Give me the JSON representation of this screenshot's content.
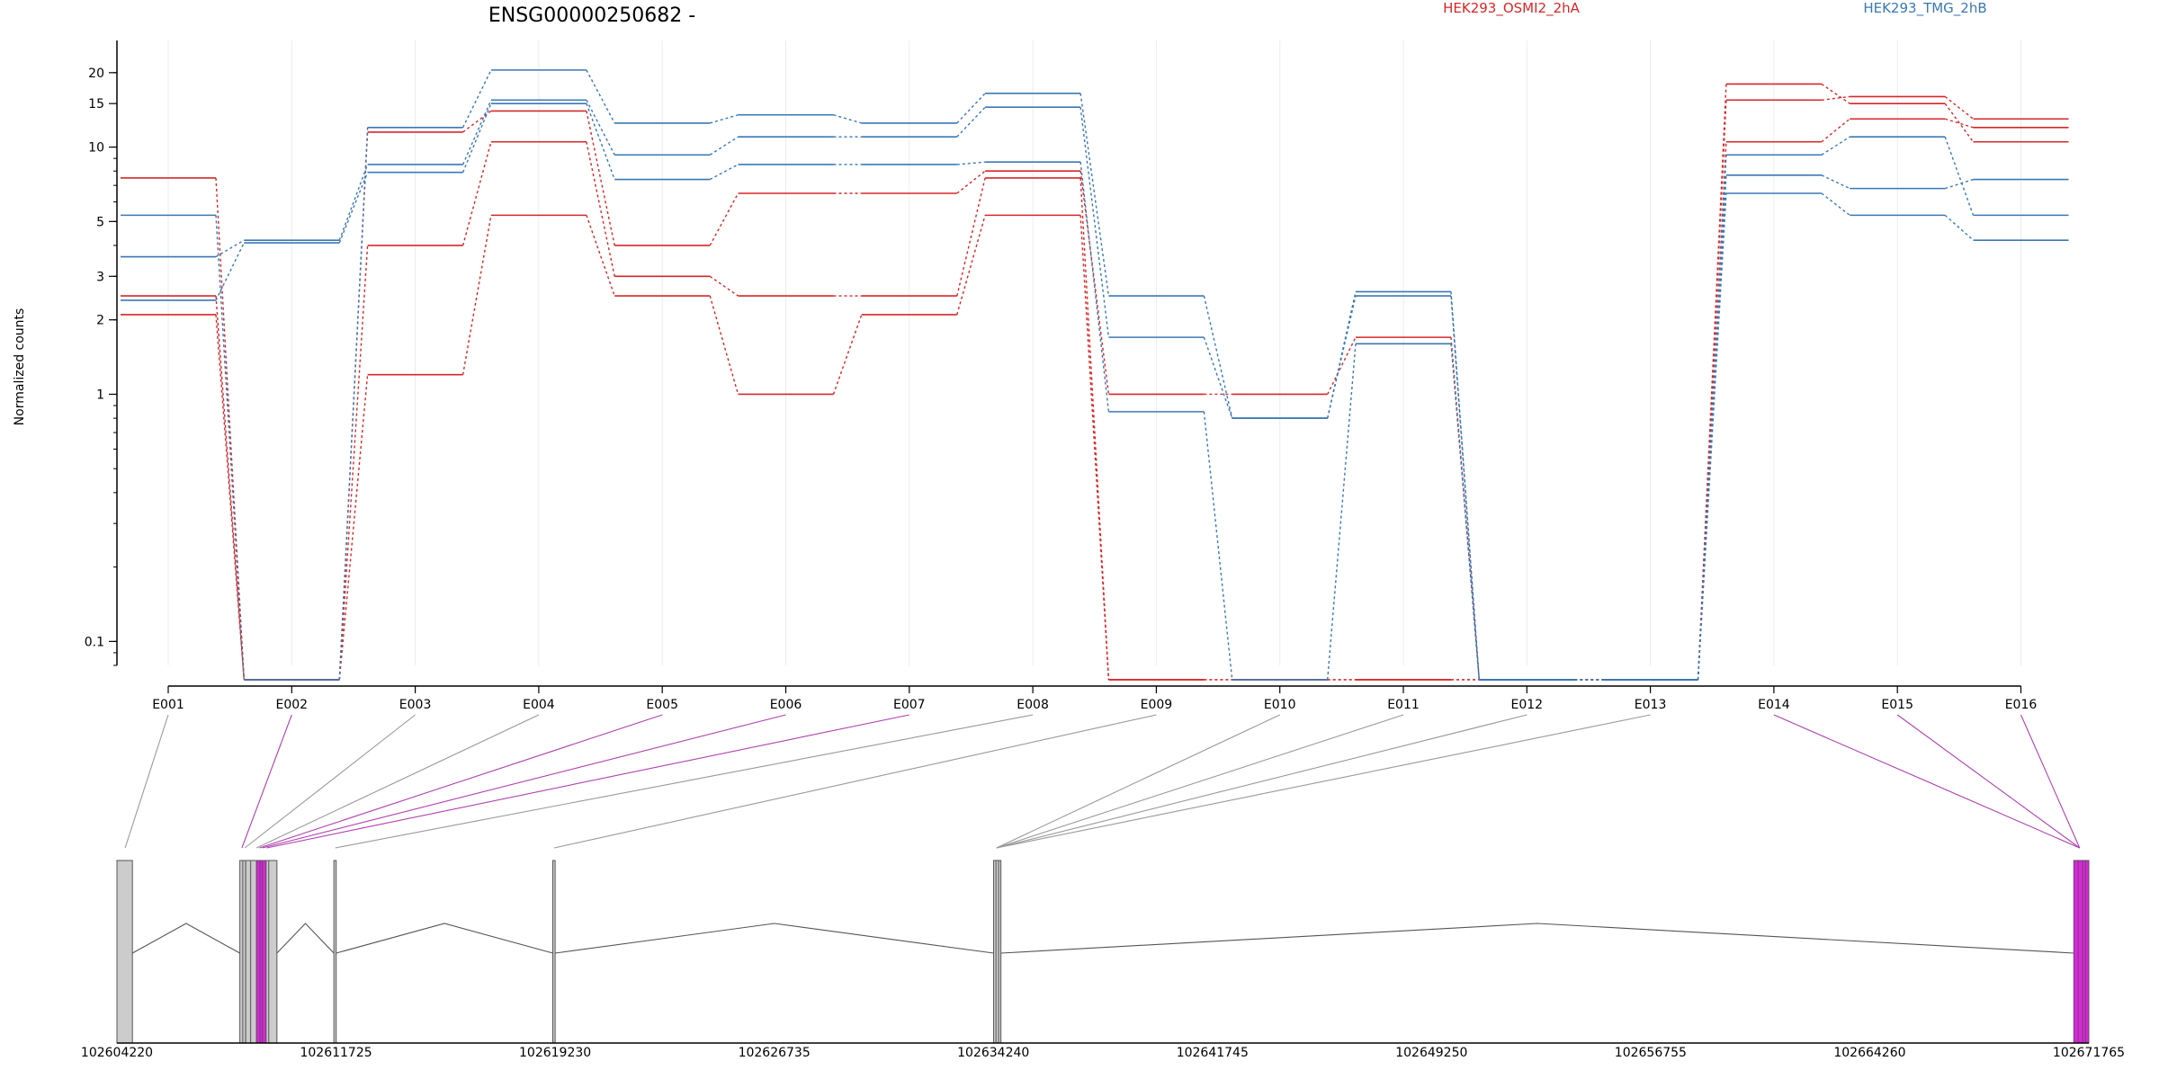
{
  "chart_data": {
    "type": "line",
    "title": "ENSG00000250682 -",
    "ylabel": "Normalized counts",
    "xlabel": "",
    "y_scale": "log",
    "ylim": [
      0.08,
      27
    ],
    "y_ticks": [
      {
        "value": 0.1,
        "label": "0.1"
      },
      {
        "value": 1,
        "label": "1"
      },
      {
        "value": 2,
        "label": "2"
      },
      {
        "value": 3,
        "label": "3"
      },
      {
        "value": 5,
        "label": "5"
      },
      {
        "value": 10,
        "label": "10"
      },
      {
        "value": 15,
        "label": "15"
      },
      {
        "value": 20,
        "label": "20"
      }
    ],
    "categories": [
      "E001",
      "E002",
      "E003",
      "E004",
      "E005",
      "E006",
      "E007",
      "E008",
      "E009",
      "E010",
      "E011",
      "E012",
      "E013",
      "E014",
      "E015",
      "E016"
    ],
    "grid": true,
    "legend_position": "top-right",
    "legend": [
      {
        "label": "HEK293_OSMI2_2hA",
        "color": "#d62728"
      },
      {
        "label": "HEK293_TMG_2hB",
        "color": "#3a78b5"
      }
    ],
    "series": [
      {
        "group": 0,
        "color": "#d62728",
        "values": [
          7.5,
          0.07,
          11.5,
          14,
          4,
          6.5,
          6.5,
          8,
          1,
          1,
          1.7,
          0.07,
          0.07,
          18,
          15,
          10.5
        ]
      },
      {
        "group": 0,
        "color": "#d62728",
        "values": [
          2.5,
          0.07,
          4,
          10.5,
          3,
          2.5,
          2.5,
          7.5,
          0.07,
          0.07,
          0.07,
          0.07,
          0.07,
          10.5,
          13,
          12
        ]
      },
      {
        "group": 0,
        "color": "#d62728",
        "values": [
          2.1,
          0.07,
          1.2,
          5.3,
          2.5,
          1,
          2.1,
          5.3,
          0.07,
          0.07,
          0.07,
          0.07,
          0.07,
          15.5,
          16,
          13
        ]
      },
      {
        "group": 1,
        "color": "#3a78b5",
        "values": [
          5.3,
          0.07,
          12,
          20.5,
          12.5,
          13.5,
          12.5,
          16.5,
          2.5,
          0.8,
          2.6,
          0.07,
          0.07,
          9.3,
          11,
          5.3
        ]
      },
      {
        "group": 1,
        "color": "#3a78b5",
        "values": [
          3.6,
          4.2,
          8.5,
          15.5,
          9.3,
          11,
          11,
          14.5,
          1.7,
          0.8,
          2.5,
          0.07,
          0.07,
          7.7,
          6.8,
          7.4
        ]
      },
      {
        "group": 1,
        "color": "#3a78b5",
        "values": [
          2.4,
          4.1,
          7.9,
          15,
          7.4,
          8.5,
          8.5,
          8.7,
          0.85,
          0.07,
          1.6,
          0.07,
          0.07,
          6.5,
          5.3,
          4.2
        ]
      }
    ],
    "genome_axis": {
      "start": 102604220,
      "end": 102671765,
      "tick_labels": [
        "102604220",
        "102611725",
        "102619230",
        "102626735",
        "102634240",
        "102641745",
        "102649250",
        "102656755",
        "102664260",
        "102671765"
      ]
    },
    "exon_mapping": [
      {
        "exon": "E001",
        "genomic_pos": 102604500,
        "highlight": false
      },
      {
        "exon": "E002",
        "genomic_pos": 102608500,
        "highlight": true
      },
      {
        "exon": "E003",
        "genomic_pos": 102608600,
        "highlight": false
      },
      {
        "exon": "E004",
        "genomic_pos": 102609000,
        "highlight": false
      },
      {
        "exon": "E005",
        "genomic_pos": 102609100,
        "highlight": true
      },
      {
        "exon": "E006",
        "genomic_pos": 102609200,
        "highlight": true
      },
      {
        "exon": "E007",
        "genomic_pos": 102609350,
        "highlight": true
      },
      {
        "exon": "E008",
        "genomic_pos": 102611700,
        "highlight": false
      },
      {
        "exon": "E009",
        "genomic_pos": 102619200,
        "highlight": false
      },
      {
        "exon": "E010",
        "genomic_pos": 102634350,
        "highlight": false
      },
      {
        "exon": "E011",
        "genomic_pos": 102634350,
        "highlight": false
      },
      {
        "exon": "E012",
        "genomic_pos": 102634350,
        "highlight": false
      },
      {
        "exon": "E013",
        "genomic_pos": 102634350,
        "highlight": false
      },
      {
        "exon": "E014",
        "genomic_pos": 102671450,
        "highlight": true
      },
      {
        "exon": "E015",
        "genomic_pos": 102671450,
        "highlight": true
      },
      {
        "exon": "E016",
        "genomic_pos": 102671450,
        "highlight": true
      }
    ],
    "gene_model": {
      "exons": [
        {
          "start": 102604220,
          "end": 102604750,
          "color": "#cccccc"
        },
        {
          "start": 102608430,
          "end": 102608630,
          "color": "#cccccc"
        },
        {
          "start": 102608630,
          "end": 102609000,
          "color": "#cccccc"
        },
        {
          "start": 102609000,
          "end": 102609330,
          "color": "#e020e0"
        },
        {
          "start": 102609330,
          "end": 102609700,
          "color": "#cccccc"
        },
        {
          "start": 102611650,
          "end": 102611730,
          "color": "#cccccc"
        },
        {
          "start": 102619150,
          "end": 102619230,
          "color": "#cccccc"
        },
        {
          "start": 102634250,
          "end": 102634500,
          "color": "#cccccc"
        },
        {
          "start": 102671250,
          "end": 102671765,
          "color": "#e020e0"
        }
      ],
      "exon_dividers": [
        102608530,
        102608800,
        102609120,
        102609200,
        102609420,
        102634330,
        102634420,
        102671400,
        102671550,
        102671650
      ],
      "introns": [
        {
          "start": 102604750,
          "end": 102608430
        },
        {
          "start": 102609700,
          "end": 102611650
        },
        {
          "start": 102611730,
          "end": 102619150
        },
        {
          "start": 102619230,
          "end": 102634250
        },
        {
          "start": 102634500,
          "end": 102671250
        }
      ]
    }
  }
}
